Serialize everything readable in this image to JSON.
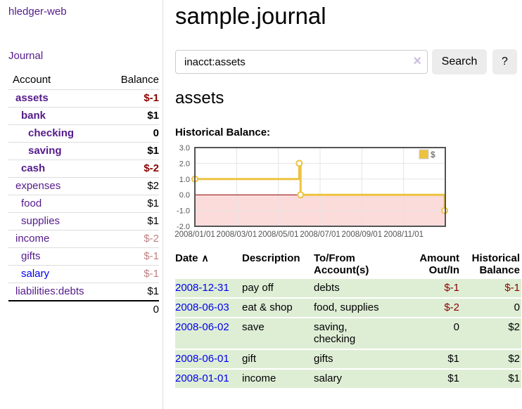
{
  "app": {
    "title": "hledger-web",
    "nav": "Journal"
  },
  "sidebar": {
    "headers": {
      "account": "Account",
      "balance": "Balance"
    },
    "rows": [
      {
        "account": "assets",
        "balance": "$-1",
        "indent": 1,
        "bold": true,
        "balance_style": "negs"
      },
      {
        "account": "bank",
        "balance": "$1",
        "indent": 2,
        "bold": true,
        "balance_style": ""
      },
      {
        "account": "checking",
        "balance": "0",
        "indent": 3,
        "bold": true,
        "balance_style": ""
      },
      {
        "account": "saving",
        "balance": "$1",
        "indent": 3,
        "bold": true,
        "balance_style": ""
      },
      {
        "account": "cash",
        "balance": "$-2",
        "indent": 2,
        "bold": true,
        "balance_style": "negs"
      },
      {
        "account": "expenses",
        "balance": "$2",
        "indent": 1,
        "bold": false,
        "balance_style": ""
      },
      {
        "account": "food",
        "balance": "$1",
        "indent": 2,
        "bold": false,
        "balance_style": ""
      },
      {
        "account": "supplies",
        "balance": "$1",
        "indent": 2,
        "bold": false,
        "balance_style": ""
      },
      {
        "account": "income",
        "balance": "$-2",
        "indent": 1,
        "bold": false,
        "balance_style": "negw"
      },
      {
        "account": "gifts",
        "balance": "$-1",
        "indent": 2,
        "bold": false,
        "balance_style": "negw"
      },
      {
        "account": "salary",
        "balance": "$-1",
        "indent": 2,
        "bold": false,
        "balance_style": "negw",
        "link": "blue"
      },
      {
        "account": "liabilities:debts",
        "balance": "$1",
        "indent": 1,
        "bold": false,
        "balance_style": ""
      }
    ],
    "total": "0"
  },
  "main": {
    "title": "sample.journal",
    "search": {
      "value": "inacct:assets",
      "clear_icon": "×",
      "button": "Search",
      "help": "?"
    },
    "account_heading": "assets"
  },
  "chart_data": {
    "type": "line",
    "title": "Historical Balance:",
    "step": true,
    "series": [
      {
        "name": "$",
        "points": [
          [
            "2008-01-01",
            1
          ],
          [
            "2008-06-01",
            2
          ],
          [
            "2008-06-03",
            0
          ],
          [
            "2008-12-31",
            -1
          ]
        ]
      }
    ],
    "x_ticks": [
      "2008/01/01",
      "2008/03/01",
      "2008/05/01",
      "2008/07/01",
      "2008/09/01",
      "2008/11/01"
    ],
    "y_ticks": [
      "3.0",
      "2.0",
      "1.0",
      "0.0",
      "-1.0",
      "-2.0"
    ],
    "ylim": [
      -2,
      3
    ],
    "x_range_months": 12,
    "grid": true,
    "legend": {
      "label": "$",
      "position": "top-right"
    }
  },
  "register": {
    "headers": {
      "date": "Date",
      "description": "Description",
      "accounts": "To/From Account(s)",
      "amount": "Amount Out/In",
      "balance": "Historical Balance"
    },
    "sort_icon": "∧",
    "rows": [
      {
        "date": "2008-12-31",
        "description": "pay off",
        "accounts": "debts",
        "amount": "$-1",
        "amount_neg": true,
        "balance": "$-1",
        "balance_neg": true
      },
      {
        "date": "2008-06-03",
        "description": "eat & shop",
        "accounts": "food, supplies",
        "amount": "$-2",
        "amount_neg": true,
        "balance": "0",
        "balance_neg": false
      },
      {
        "date": "2008-06-02",
        "description": "save",
        "accounts": "saving,\nchecking",
        "amount": "0",
        "amount_neg": false,
        "balance": "$2",
        "balance_neg": false
      },
      {
        "date": "2008-06-01",
        "description": "gift",
        "accounts": "gifts",
        "amount": "$1",
        "amount_neg": false,
        "balance": "$2",
        "balance_neg": false
      },
      {
        "date": "2008-01-01",
        "description": "income",
        "accounts": "salary",
        "amount": "$1",
        "amount_neg": false,
        "balance": "$1",
        "balance_neg": false
      }
    ]
  },
  "colors": {
    "purple_link": "#551a8b",
    "blue_link": "#0000ee",
    "neg_strong": "#8b0000",
    "neg_soft": "#bf8080",
    "row_green": "#deeed5",
    "chart_gold": "#edc240",
    "chart_pink": "#fcdbdb",
    "zero_line": "#8b0000",
    "chart_border": "#545454",
    "tick_text": "#545454",
    "grid_line": "#e4e4e4",
    "button_bg": "#ececec",
    "input_border": "#cccccc",
    "divider": "#dddddd",
    "clear_icon": "#c9bfdf"
  }
}
